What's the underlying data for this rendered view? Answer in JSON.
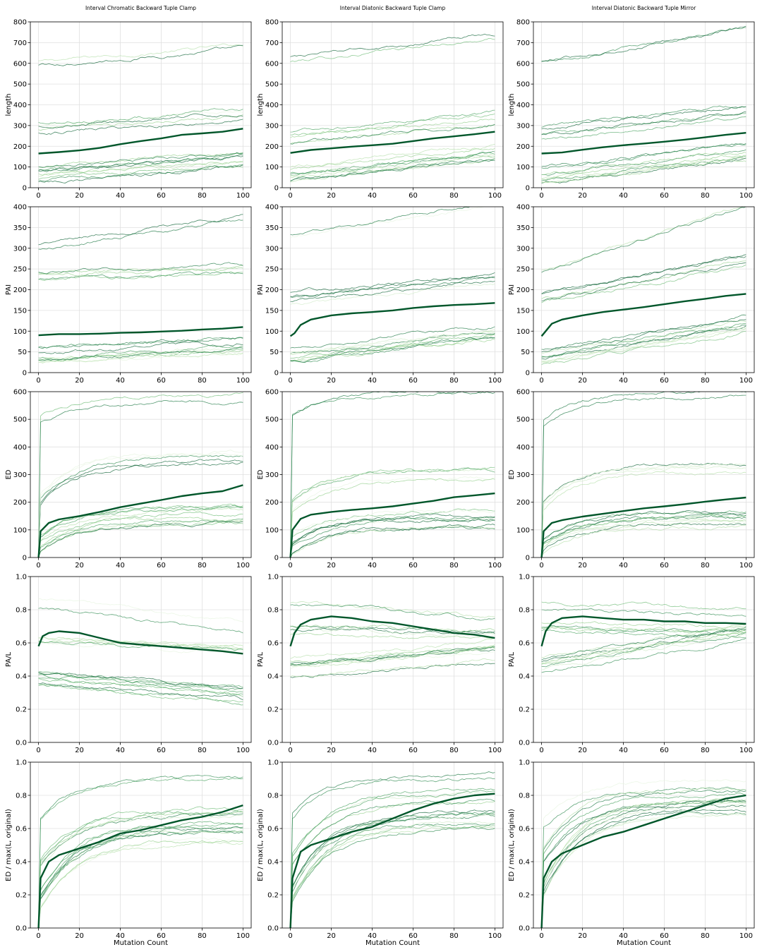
{
  "figure": {
    "columns": [
      "Interval Chromatic Backward Tuple Clamp",
      "Interval Diatonic Backward Tuple Clamp",
      "Interval Diatonic Backward Tuple Mirror"
    ],
    "xlabel": "Mutation Count"
  },
  "chart_data": [
    {
      "type": "line",
      "row": 0,
      "col": 0,
      "title": "Interval Chromatic Backward Tuple Clamp",
      "ylabel": "length",
      "xlim": [
        0,
        100
      ],
      "ylim": [
        0,
        800
      ],
      "yticks": [
        0,
        100,
        200,
        300,
        400,
        500,
        600,
        700,
        800
      ],
      "xticks": [
        0,
        20,
        40,
        60,
        80,
        100
      ],
      "mean": {
        "name": "mean",
        "x": [
          0,
          10,
          20,
          30,
          40,
          50,
          60,
          70,
          80,
          90,
          100
        ],
        "y": [
          165,
          172,
          180,
          192,
          210,
          225,
          238,
          255,
          262,
          270,
          285
        ]
      },
      "bands": [
        {
          "name": "upper",
          "start": 600,
          "end": 680
        },
        {
          "name": "mid",
          "start": 280,
          "end": 340
        },
        {
          "name": "low",
          "start": 60,
          "end": 130
        }
      ]
    },
    {
      "type": "line",
      "row": 0,
      "col": 1,
      "title": "Interval Diatonic Backward Tuple Clamp",
      "ylabel": "length",
      "xlim": [
        0,
        100
      ],
      "ylim": [
        0,
        800
      ],
      "yticks": [
        0,
        100,
        200,
        300,
        400,
        500,
        600,
        700,
        800
      ],
      "xticks": [
        0,
        20,
        40,
        60,
        80,
        100
      ],
      "mean": {
        "name": "mean",
        "x": [
          0,
          10,
          20,
          30,
          40,
          50,
          60,
          70,
          80,
          90,
          100
        ],
        "y": [
          168,
          182,
          190,
          198,
          205,
          212,
          225,
          238,
          248,
          258,
          270
        ]
      },
      "bands": [
        {
          "name": "upper",
          "start": 600,
          "end": 710
        },
        {
          "name": "mid",
          "start": 240,
          "end": 330
        },
        {
          "name": "low",
          "start": 60,
          "end": 160
        }
      ]
    },
    {
      "type": "line",
      "row": 0,
      "col": 2,
      "title": "Interval Diatonic Backward Tuple Mirror",
      "ylabel": "length",
      "xlim": [
        0,
        100
      ],
      "ylim": [
        0,
        800
      ],
      "yticks": [
        0,
        100,
        200,
        300,
        400,
        500,
        600,
        700,
        800
      ],
      "xticks": [
        0,
        20,
        40,
        60,
        80,
        100
      ],
      "mean": {
        "name": "mean",
        "x": [
          0,
          10,
          20,
          30,
          40,
          50,
          60,
          70,
          80,
          90,
          100
        ],
        "y": [
          165,
          170,
          183,
          195,
          205,
          213,
          222,
          232,
          243,
          255,
          265
        ]
      },
      "bands": [
        {
          "name": "upper",
          "start": 600,
          "end": 760
        },
        {
          "name": "mid",
          "start": 260,
          "end": 370
        },
        {
          "name": "low",
          "start": 60,
          "end": 170
        }
      ]
    },
    {
      "type": "line",
      "row": 1,
      "col": 0,
      "ylabel": "PAI",
      "xlim": [
        0,
        100
      ],
      "ylim": [
        0,
        400
      ],
      "yticks": [
        0,
        50,
        100,
        150,
        200,
        250,
        300,
        350,
        400
      ],
      "xticks": [
        0,
        20,
        40,
        60,
        80,
        100
      ],
      "mean": {
        "name": "mean",
        "x": [
          0,
          10,
          20,
          30,
          40,
          50,
          60,
          70,
          80,
          90,
          100
        ],
        "y": [
          90,
          93,
          93,
          94,
          96,
          97,
          99,
          101,
          104,
          106,
          110
        ]
      },
      "bands": [
        {
          "name": "upper",
          "start": 305,
          "end": 375
        },
        {
          "name": "mid",
          "start": 230,
          "end": 245
        },
        {
          "name": "low",
          "start": 45,
          "end": 70
        }
      ]
    },
    {
      "type": "line",
      "row": 1,
      "col": 1,
      "ylabel": "PAI",
      "xlim": [
        0,
        100
      ],
      "ylim": [
        0,
        400
      ],
      "yticks": [
        0,
        50,
        100,
        150,
        200,
        250,
        300,
        350,
        400
      ],
      "xticks": [
        0,
        20,
        40,
        60,
        80,
        100
      ],
      "mean": {
        "name": "mean",
        "x": [
          0,
          2,
          5,
          10,
          20,
          30,
          40,
          50,
          60,
          70,
          80,
          90,
          100
        ],
        "y": [
          88,
          95,
          115,
          128,
          138,
          143,
          146,
          150,
          156,
          160,
          163,
          165,
          168
        ]
      },
      "bands": [
        {
          "name": "upper",
          "start": 320,
          "end": 400
        },
        {
          "name": "mid",
          "start": 180,
          "end": 230
        },
        {
          "name": "low",
          "start": 45,
          "end": 100
        }
      ]
    },
    {
      "type": "line",
      "row": 1,
      "col": 2,
      "ylabel": "PAI",
      "xlim": [
        0,
        100
      ],
      "ylim": [
        0,
        400
      ],
      "yticks": [
        0,
        50,
        100,
        150,
        200,
        250,
        300,
        350,
        400
      ],
      "xticks": [
        0,
        20,
        40,
        60,
        80,
        100
      ],
      "mean": {
        "name": "mean",
        "x": [
          0,
          2,
          5,
          10,
          20,
          30,
          40,
          50,
          60,
          70,
          80,
          90,
          100
        ],
        "y": [
          88,
          100,
          118,
          128,
          138,
          146,
          152,
          158,
          165,
          172,
          178,
          185,
          190
        ]
      },
      "bands": [
        {
          "name": "upper",
          "start": 240,
          "end": 400
        },
        {
          "name": "mid",
          "start": 180,
          "end": 270
        },
        {
          "name": "low",
          "start": 40,
          "end": 120
        }
      ]
    },
    {
      "type": "line",
      "row": 2,
      "col": 0,
      "ylabel": "ED",
      "xlim": [
        0,
        100
      ],
      "ylim": [
        0,
        600
      ],
      "yticks": [
        0,
        100,
        200,
        300,
        400,
        500,
        600
      ],
      "xticks": [
        0,
        20,
        40,
        60,
        80,
        100
      ],
      "mean": {
        "name": "mean",
        "x": [
          0,
          1,
          5,
          10,
          20,
          30,
          40,
          50,
          60,
          70,
          80,
          90,
          100
        ],
        "y": [
          0,
          95,
          125,
          138,
          150,
          165,
          182,
          195,
          208,
          222,
          232,
          240,
          262
        ]
      },
      "bands": [
        {
          "name": "upper",
          "start": 500,
          "end": 580
        },
        {
          "name": "mid",
          "start": 200,
          "end": 360
        },
        {
          "name": "low",
          "start": 40,
          "end": 150
        }
      ]
    },
    {
      "type": "line",
      "row": 2,
      "col": 1,
      "ylabel": "ED",
      "xlim": [
        0,
        100
      ],
      "ylim": [
        0,
        600
      ],
      "yticks": [
        0,
        100,
        200,
        300,
        400,
        500,
        600
      ],
      "xticks": [
        0,
        20,
        40,
        60,
        80,
        100
      ],
      "mean": {
        "name": "mean",
        "x": [
          0,
          1,
          5,
          10,
          20,
          30,
          40,
          50,
          60,
          70,
          80,
          90,
          100
        ],
        "y": [
          0,
          100,
          140,
          155,
          165,
          172,
          178,
          185,
          195,
          205,
          218,
          225,
          232
        ]
      },
      "bands": [
        {
          "name": "upper",
          "start": 500,
          "end": 590
        },
        {
          "name": "mid",
          "start": 180,
          "end": 300
        },
        {
          "name": "low",
          "start": 40,
          "end": 140
        }
      ]
    },
    {
      "type": "line",
      "row": 2,
      "col": 2,
      "ylabel": "ED",
      "xlim": [
        0,
        100
      ],
      "ylim": [
        0,
        600
      ],
      "yticks": [
        0,
        100,
        200,
        300,
        400,
        500,
        600
      ],
      "xticks": [
        0,
        20,
        40,
        60,
        80,
        100
      ],
      "mean": {
        "name": "mean",
        "x": [
          0,
          1,
          5,
          10,
          20,
          30,
          40,
          50,
          60,
          70,
          80,
          90,
          100
        ],
        "y": [
          0,
          95,
          125,
          135,
          148,
          158,
          168,
          178,
          185,
          193,
          202,
          210,
          217
        ]
      },
      "bands": [
        {
          "name": "upper",
          "start": 480,
          "end": 590
        },
        {
          "name": "mid",
          "start": 180,
          "end": 320
        },
        {
          "name": "low",
          "start": 40,
          "end": 140
        }
      ]
    },
    {
      "type": "line",
      "row": 3,
      "col": 0,
      "ylabel": "PA/L",
      "xlim": [
        0,
        100
      ],
      "ylim": [
        0,
        1.0
      ],
      "yticks": [
        0.0,
        0.2,
        0.4,
        0.6,
        0.8,
        1.0
      ],
      "xticks": [
        0,
        20,
        40,
        60,
        80,
        100
      ],
      "mean": {
        "name": "mean",
        "x": [
          0,
          2,
          5,
          10,
          20,
          30,
          40,
          50,
          60,
          70,
          80,
          90,
          100
        ],
        "y": [
          0.58,
          0.64,
          0.66,
          0.67,
          0.66,
          0.63,
          0.6,
          0.59,
          0.58,
          0.57,
          0.56,
          0.55,
          0.535
        ]
      },
      "bands": [
        {
          "name": "upper",
          "start": 0.85,
          "end": 0.7
        },
        {
          "name": "mid",
          "start": 0.6,
          "end": 0.55
        },
        {
          "name": "low",
          "start": 0.4,
          "end": 0.3
        }
      ]
    },
    {
      "type": "line",
      "row": 3,
      "col": 1,
      "ylabel": "PA/L",
      "xlim": [
        0,
        100
      ],
      "ylim": [
        0,
        1.0
      ],
      "yticks": [
        0.0,
        0.2,
        0.4,
        0.6,
        0.8,
        1.0
      ],
      "xticks": [
        0,
        20,
        40,
        60,
        80,
        100
      ],
      "mean": {
        "name": "mean",
        "x": [
          0,
          2,
          5,
          10,
          20,
          30,
          40,
          50,
          60,
          70,
          80,
          90,
          100
        ],
        "y": [
          0.58,
          0.66,
          0.71,
          0.74,
          0.76,
          0.75,
          0.73,
          0.72,
          0.7,
          0.68,
          0.66,
          0.65,
          0.63
        ]
      },
      "bands": [
        {
          "name": "upper",
          "start": 0.82,
          "end": 0.74
        },
        {
          "name": "mid",
          "start": 0.68,
          "end": 0.65
        },
        {
          "name": "low",
          "start": 0.45,
          "end": 0.55
        }
      ]
    },
    {
      "type": "line",
      "row": 3,
      "col": 2,
      "ylabel": "PA/L",
      "xlim": [
        0,
        100
      ],
      "ylim": [
        0,
        1.0
      ],
      "yticks": [
        0.0,
        0.2,
        0.4,
        0.6,
        0.8,
        1.0
      ],
      "xticks": [
        0,
        20,
        40,
        60,
        80,
        100
      ],
      "mean": {
        "name": "mean",
        "x": [
          0,
          2,
          5,
          10,
          20,
          30,
          40,
          50,
          60,
          70,
          80,
          90,
          100
        ],
        "y": [
          0.58,
          0.67,
          0.72,
          0.75,
          0.76,
          0.75,
          0.74,
          0.74,
          0.73,
          0.73,
          0.72,
          0.72,
          0.715
        ]
      },
      "bands": [
        {
          "name": "upper",
          "start": 0.82,
          "end": 0.78
        },
        {
          "name": "mid",
          "start": 0.7,
          "end": 0.68
        },
        {
          "name": "low",
          "start": 0.45,
          "end": 0.65
        }
      ]
    },
    {
      "type": "line",
      "row": 4,
      "col": 0,
      "ylabel": "ED / max(L, original)",
      "xlim": [
        0,
        100
      ],
      "ylim": [
        0,
        1.0
      ],
      "yticks": [
        0.0,
        0.2,
        0.4,
        0.6,
        0.8,
        1.0
      ],
      "xticks": [
        0,
        20,
        40,
        60,
        80,
        100
      ],
      "mean": {
        "name": "mean",
        "x": [
          0,
          1,
          5,
          10,
          20,
          30,
          40,
          50,
          60,
          70,
          80,
          90,
          100
        ],
        "y": [
          0,
          0.3,
          0.4,
          0.44,
          0.48,
          0.52,
          0.57,
          0.59,
          0.62,
          0.65,
          0.67,
          0.7,
          0.74
        ]
      },
      "bands": [
        {
          "name": "upper",
          "start": 0.62,
          "end": 0.88
        },
        {
          "name": "mid",
          "start": 0.38,
          "end": 0.7
        },
        {
          "name": "low",
          "start": 0.15,
          "end": 0.58
        }
      ]
    },
    {
      "type": "line",
      "row": 4,
      "col": 1,
      "ylabel": "ED / max(L, original)",
      "xlim": [
        0,
        100
      ],
      "ylim": [
        0,
        1.0
      ],
      "yticks": [
        0.0,
        0.2,
        0.4,
        0.6,
        0.8,
        1.0
      ],
      "xticks": [
        0,
        20,
        40,
        60,
        80,
        100
      ],
      "mean": {
        "name": "mean",
        "x": [
          0,
          1,
          5,
          10,
          20,
          30,
          40,
          50,
          60,
          70,
          80,
          90,
          100
        ],
        "y": [
          0,
          0.3,
          0.46,
          0.5,
          0.54,
          0.58,
          0.61,
          0.66,
          0.71,
          0.75,
          0.78,
          0.8,
          0.81
        ]
      },
      "bands": [
        {
          "name": "upper",
          "start": 0.65,
          "end": 0.9
        },
        {
          "name": "mid",
          "start": 0.4,
          "end": 0.8
        },
        {
          "name": "low",
          "start": 0.18,
          "end": 0.65
        }
      ]
    },
    {
      "type": "line",
      "row": 4,
      "col": 2,
      "ylabel": "ED / max(L, original)",
      "xlim": [
        0,
        100
      ],
      "ylim": [
        0,
        1.0
      ],
      "yticks": [
        0.0,
        0.2,
        0.4,
        0.6,
        0.8,
        1.0
      ],
      "xticks": [
        0,
        20,
        40,
        60,
        80,
        100
      ],
      "mean": {
        "name": "mean",
        "x": [
          0,
          1,
          5,
          10,
          20,
          30,
          40,
          50,
          60,
          70,
          80,
          90,
          100
        ],
        "y": [
          0,
          0.3,
          0.4,
          0.45,
          0.5,
          0.55,
          0.58,
          0.62,
          0.66,
          0.7,
          0.74,
          0.78,
          0.8
        ]
      },
      "bands": [
        {
          "name": "upper",
          "start": 0.62,
          "end": 0.86
        },
        {
          "name": "mid",
          "start": 0.42,
          "end": 0.8
        },
        {
          "name": "low",
          "start": 0.2,
          "end": 0.72
        }
      ]
    }
  ],
  "colors": {
    "mean": "#00562a",
    "traces": [
      "#e6f4df",
      "#d0ebc8",
      "#b4dfa9",
      "#93cf8b",
      "#6cbb74",
      "#48a25f",
      "#2d8a4f",
      "#197640",
      "#0c6234"
    ],
    "grid": "#e0e0e0",
    "axis": "#000000"
  }
}
